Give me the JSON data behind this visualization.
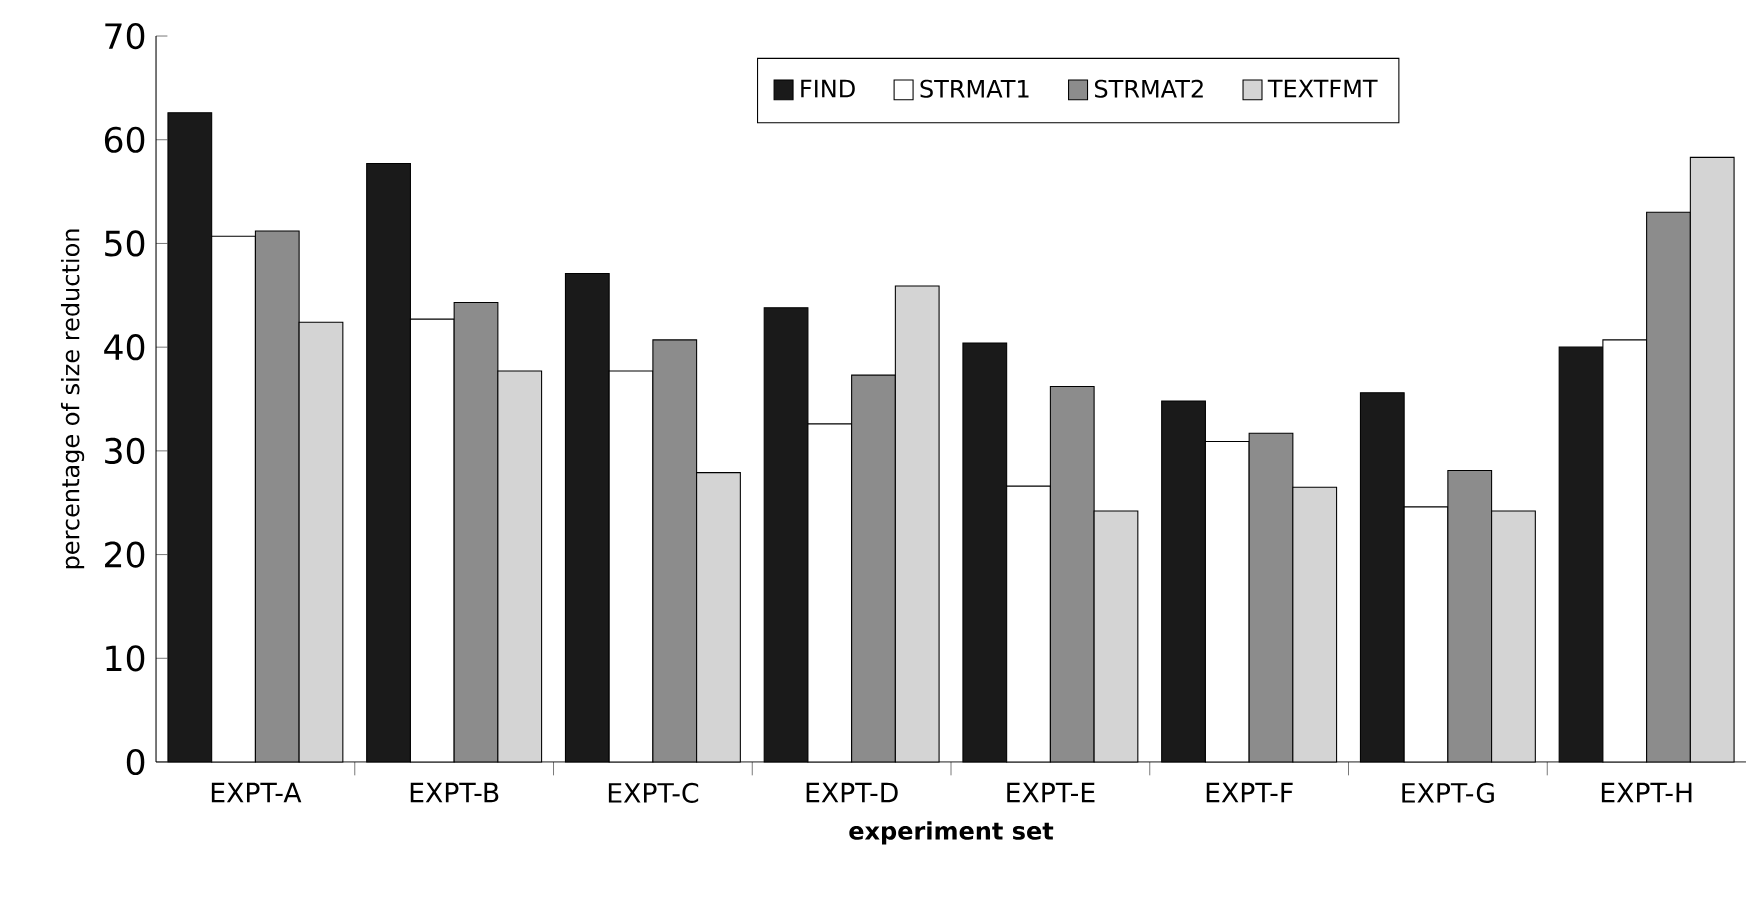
{
  "chart_data": {
    "type": "bar",
    "xlabel": "experiment set",
    "ylabel": "percentage of size reduction",
    "categories": [
      "EXPT-A",
      "EXPT-B",
      "EXPT-C",
      "EXPT-D",
      "EXPT-E",
      "EXPT-F",
      "EXPT-G",
      "EXPT-H"
    ],
    "series": [
      {
        "name": "FIND",
        "color": "#1a1a1a",
        "values": [
          62.6,
          57.7,
          47.1,
          43.8,
          40.4,
          34.8,
          35.6,
          40.0
        ]
      },
      {
        "name": "STRMAT1",
        "color": "#ffffff",
        "values": [
          50.7,
          42.7,
          37.7,
          32.6,
          26.6,
          30.9,
          24.6,
          40.7
        ]
      },
      {
        "name": "STRMAT2",
        "color": "#8c8c8c",
        "values": [
          51.2,
          44.3,
          40.7,
          37.3,
          36.2,
          31.7,
          28.1,
          53.0
        ]
      },
      {
        "name": "TEXTFMT",
        "color": "#d4d4d4",
        "values": [
          42.4,
          37.7,
          27.9,
          45.9,
          24.2,
          26.5,
          24.2,
          58.3
        ]
      }
    ],
    "ylim": [
      0,
      70
    ],
    "yticks": [
      0,
      10,
      20,
      30,
      40,
      50,
      60,
      70
    ],
    "grid": false,
    "legend": "top"
  }
}
